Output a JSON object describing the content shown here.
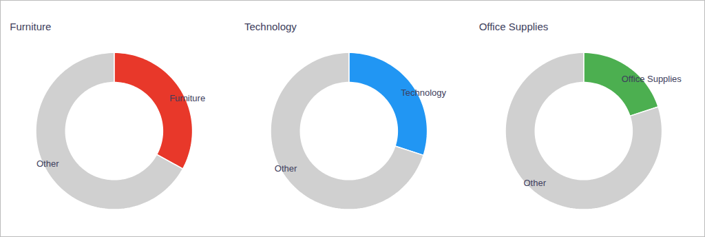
{
  "chart_data": [
    {
      "type": "pie",
      "title": "Furniture",
      "categories": [
        "Furniture",
        "Other"
      ],
      "values": [
        33,
        67
      ],
      "colors": [
        "#E8382A",
        "#D0D0D0"
      ]
    },
    {
      "type": "pie",
      "title": "Technology",
      "categories": [
        "Technology",
        "Other"
      ],
      "values": [
        30,
        70
      ],
      "colors": [
        "#2196F3",
        "#D0D0D0"
      ]
    },
    {
      "type": "pie",
      "title": "Office Supplies",
      "categories": [
        "Office Supplies",
        "Other"
      ],
      "values": [
        20,
        80
      ],
      "colors": [
        "#4CAF50",
        "#D0D0D0"
      ]
    }
  ]
}
